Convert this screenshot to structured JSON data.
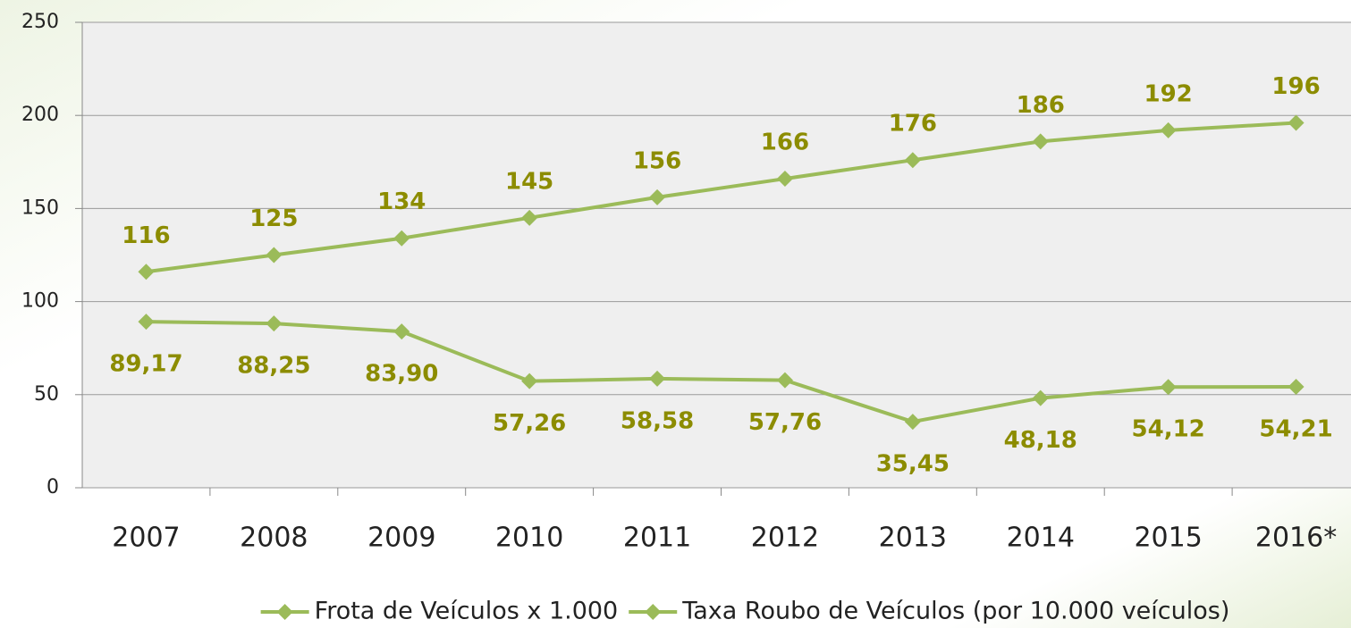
{
  "chart_data": {
    "type": "line",
    "categories": [
      "2007",
      "2008",
      "2009",
      "2010",
      "2011",
      "2012",
      "2013",
      "2014",
      "2015",
      "2016*"
    ],
    "series": [
      {
        "name": "Frota de Veículos x 1.000",
        "color": "#9bbb59",
        "values": [
          116,
          125,
          134,
          145,
          156,
          166,
          176,
          186,
          192,
          196
        ]
      },
      {
        "name": "Taxa Roubo de Veículos (por 10.000 veículos)",
        "color": "#9bbb59",
        "values": [
          89.17,
          88.25,
          83.9,
          57.26,
          58.58,
          57.76,
          35.45,
          48.18,
          54.12,
          54.21
        ],
        "value_labels": [
          "89,17",
          "88,25",
          "83,90",
          "57,26",
          "58,58",
          "57,76",
          "35,45",
          "48,18",
          "54,12",
          "54,21"
        ]
      }
    ],
    "ylim": [
      0,
      250
    ],
    "yticks": [
      0,
      50,
      100,
      150,
      200,
      250
    ],
    "grid": true,
    "legend": "bottom"
  }
}
